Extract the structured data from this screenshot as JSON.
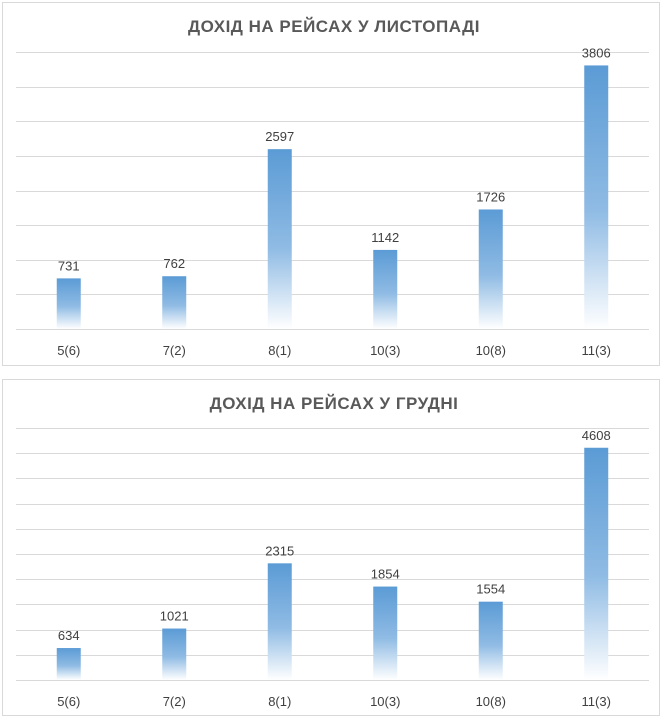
{
  "colors": {
    "bar_top": "#5b9bd5",
    "bar_bottom": "#ffffff",
    "grid": "#d9d9d9",
    "text": "#404040",
    "title": "#595959"
  },
  "chart_data": [
    {
      "type": "bar",
      "title": "ДОХІД НА РЕЙСАХ У ЛИСТОПАДІ",
      "categories": [
        "5(6)",
        "7(2)",
        "8(1)",
        "10(3)",
        "10(8)",
        "11(3)"
      ],
      "values": [
        731,
        762,
        2597,
        1142,
        1726,
        3806
      ],
      "xlabel": "",
      "ylabel": "",
      "ylim": [
        0,
        4000
      ],
      "grid": true,
      "gridlines": 8,
      "data_labels": true
    },
    {
      "type": "bar",
      "title": "ДОХІД НА РЕЙСАХ У ГРУДНІ",
      "categories": [
        "5(6)",
        "7(2)",
        "8(1)",
        "10(3)",
        "10(8)",
        "11(3)"
      ],
      "values": [
        634,
        1021,
        2315,
        1854,
        1554,
        4608
      ],
      "xlabel": "",
      "ylabel": "",
      "ylim": [
        0,
        5000
      ],
      "grid": true,
      "gridlines": 10,
      "data_labels": true
    }
  ]
}
